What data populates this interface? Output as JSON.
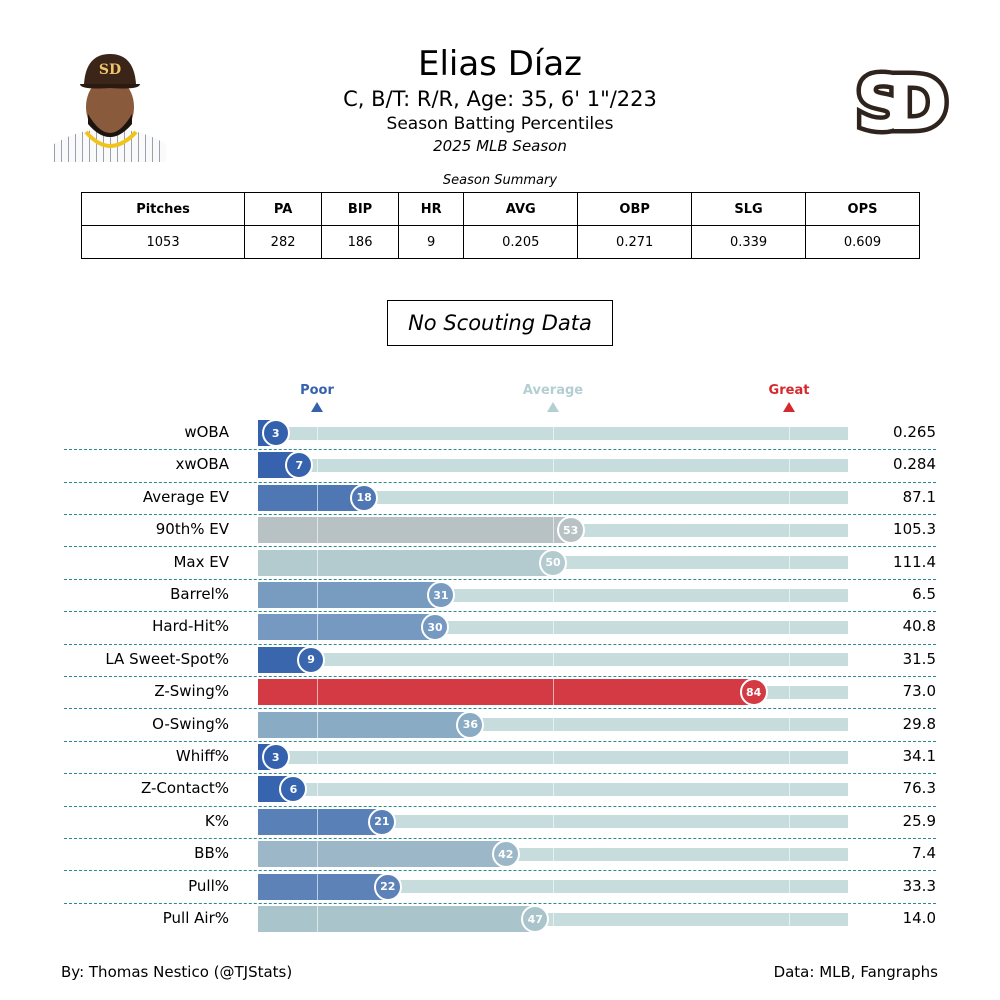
{
  "header": {
    "player_name": "Elias Díaz",
    "info": "C, B/T: R/R, Age: 35, 6' 1\"/223",
    "subtitle": "Season Batting Percentiles",
    "season": "2025 MLB Season",
    "logo_text": "SD"
  },
  "summary": {
    "title": "Season Summary",
    "headers": [
      "Pitches",
      "PA",
      "BIP",
      "HR",
      "AVG",
      "OBP",
      "SLG",
      "OPS"
    ],
    "values": [
      "1053",
      "282",
      "186",
      "9",
      "0.205",
      "0.271",
      "0.339",
      "0.609"
    ]
  },
  "scouting": "No Scouting Data",
  "chart_data": {
    "type": "bar",
    "orientation": "horizontal",
    "xlim": [
      0,
      100
    ],
    "markers": [
      {
        "label": "Poor",
        "percentile": 10,
        "color": "#3561ad"
      },
      {
        "label": "Average",
        "percentile": 50,
        "color": "#b3cfd3"
      },
      {
        "label": "Great",
        "percentile": 90,
        "color": "#d42a2f"
      }
    ],
    "rows": [
      {
        "stat": "wOBA",
        "percentile": 3,
        "value": "0.265",
        "color": "#3461ad"
      },
      {
        "stat": "xwOBA",
        "percentile": 7,
        "value": "0.284",
        "color": "#3763ae"
      },
      {
        "stat": "Average EV",
        "percentile": 18,
        "value": "87.1",
        "color": "#4f77b3"
      },
      {
        "stat": "90th% EV",
        "percentile": 53,
        "value": "105.3",
        "color": "#b8c1c3"
      },
      {
        "stat": "Max EV",
        "percentile": 50,
        "value": "111.4",
        "color": "#b3cbce"
      },
      {
        "stat": "Barrel%",
        "percentile": 31,
        "value": "6.5",
        "color": "#789cc0"
      },
      {
        "stat": "Hard-Hit%",
        "percentile": 30,
        "value": "40.8",
        "color": "#7599c0"
      },
      {
        "stat": "LA Sweet-Spot%",
        "percentile": 9,
        "value": "31.5",
        "color": "#3a66ae"
      },
      {
        "stat": "Z-Swing%",
        "percentile": 84,
        "value": "73.0",
        "color": "#d33a43"
      },
      {
        "stat": "O-Swing%",
        "percentile": 36,
        "value": "29.8",
        "color": "#89abc4"
      },
      {
        "stat": "Whiff%",
        "percentile": 3,
        "value": "34.1",
        "color": "#3461ad"
      },
      {
        "stat": "Z-Contact%",
        "percentile": 6,
        "value": "76.3",
        "color": "#3664ae"
      },
      {
        "stat": "K%",
        "percentile": 21,
        "value": "25.9",
        "color": "#5a80b8"
      },
      {
        "stat": "BB%",
        "percentile": 42,
        "value": "7.4",
        "color": "#9cb8c8"
      },
      {
        "stat": "Pull%",
        "percentile": 22,
        "value": "33.3",
        "color": "#5d82b8"
      },
      {
        "stat": "Pull Air%",
        "percentile": 47,
        "value": "14.0",
        "color": "#a9c4cb"
      }
    ]
  },
  "footer": {
    "left": "By: Thomas Nestico (@TJStats)",
    "right": "Data: MLB, Fangraphs"
  }
}
